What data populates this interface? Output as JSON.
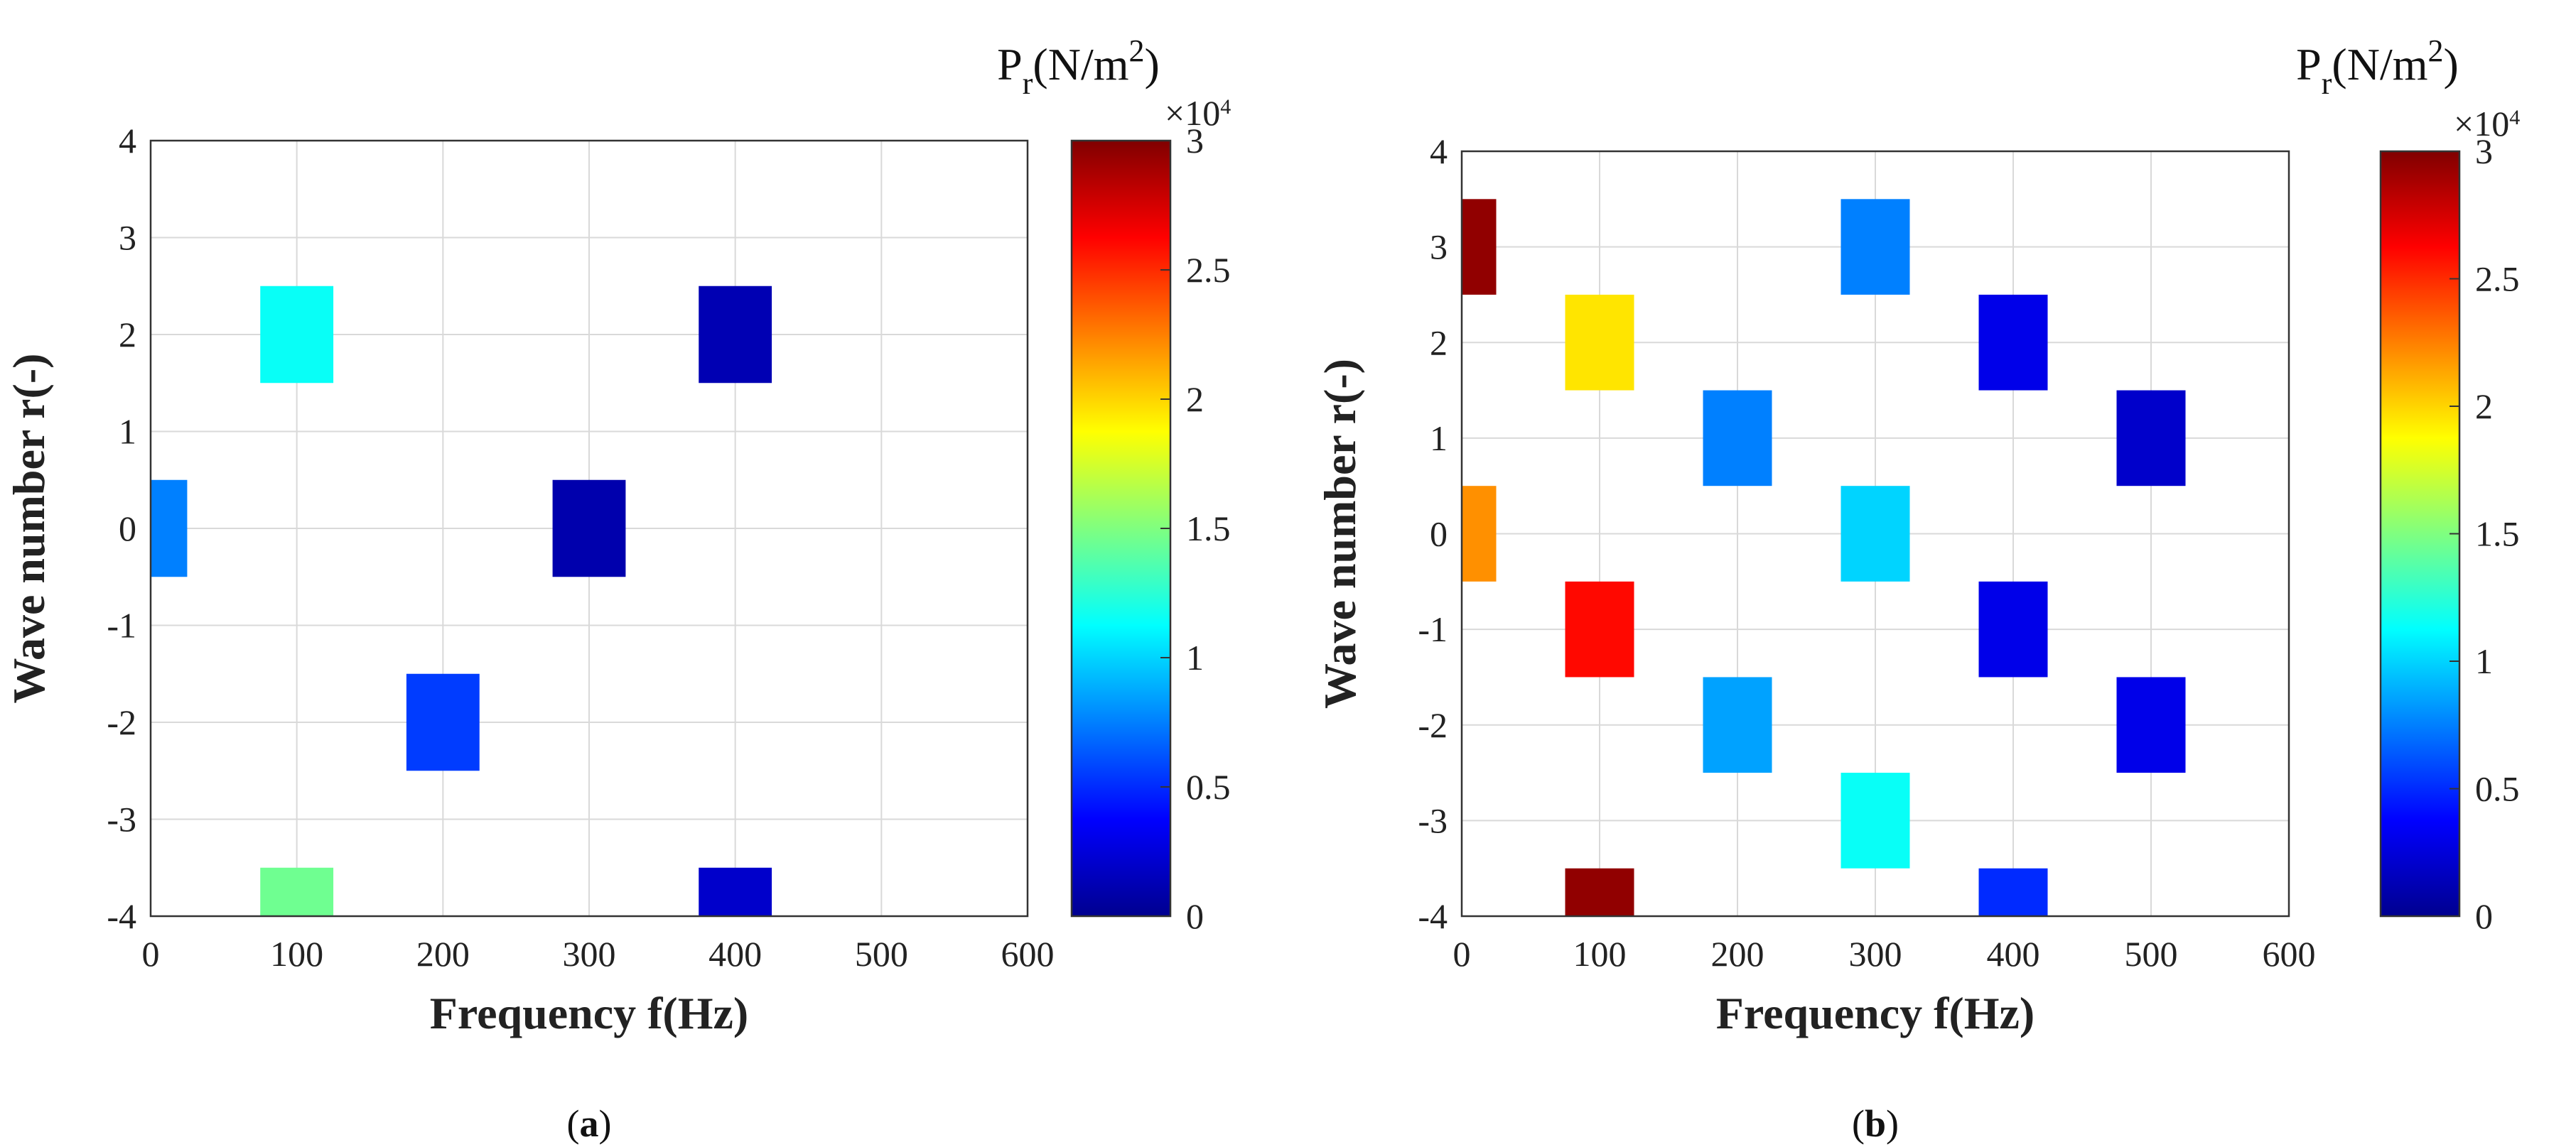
{
  "colorbar": {
    "min": 0,
    "max": 3,
    "ticks": [
      "0",
      "0.5",
      "1",
      "1.5",
      "2",
      "2.5",
      "3"
    ],
    "exponent": "×10",
    "exponent_power": "4",
    "title_P": "P",
    "title_sub": "r",
    "title_unit": "(N/m",
    "title_pow": "2",
    "title_close": ")",
    "colormap": "jet",
    "colors": [
      "#00008f",
      "#0000ff",
      "#00ffff",
      "#ffff00",
      "#ff0000",
      "#800000"
    ]
  },
  "chart_data": [
    {
      "type": "heatmap",
      "panel_label": "a",
      "xlabel": "Frequency f(Hz)",
      "ylabel": "Wave number r(-)",
      "xlim": [
        0,
        600
      ],
      "ylim": [
        -4,
        4
      ],
      "xticks": [
        "0",
        "100",
        "200",
        "300",
        "400",
        "500",
        "600"
      ],
      "yticks": [
        "-4",
        "-3",
        "-2",
        "-1",
        "0",
        "1",
        "2",
        "3",
        "4"
      ],
      "value_scale": "x10^4 N/m^2",
      "cells": [
        {
          "f": 0,
          "r": 0,
          "value": 0.75
        },
        {
          "f": 100,
          "r": 2,
          "value": 1.15
        },
        {
          "f": 100,
          "r": -4,
          "value": 1.45
        },
        {
          "f": 200,
          "r": -2,
          "value": 0.55
        },
        {
          "f": 300,
          "r": 0,
          "value": 0.1
        },
        {
          "f": 400,
          "r": 2,
          "value": 0.12
        },
        {
          "f": 400,
          "r": -4,
          "value": 0.2
        }
      ]
    },
    {
      "type": "heatmap",
      "panel_label": "b",
      "xlabel": "Frequency f(Hz)",
      "ylabel": "Wave number r(-)",
      "xlim": [
        0,
        600
      ],
      "ylim": [
        -4,
        4
      ],
      "xticks": [
        "0",
        "100",
        "200",
        "300",
        "400",
        "500",
        "600"
      ],
      "yticks": [
        "-4",
        "-3",
        "-2",
        "-1",
        "0",
        "1",
        "2",
        "3",
        "4"
      ],
      "value_scale": "x10^4 N/m^2",
      "cells": [
        {
          "f": 0,
          "r": 3,
          "value": 2.95
        },
        {
          "f": 0,
          "r": 0,
          "value": 2.2
        },
        {
          "f": 100,
          "r": 2,
          "value": 1.95
        },
        {
          "f": 100,
          "r": -1,
          "value": 2.6
        },
        {
          "f": 100,
          "r": -4,
          "value": 2.95
        },
        {
          "f": 200,
          "r": 1,
          "value": 0.75
        },
        {
          "f": 200,
          "r": -2,
          "value": 0.85
        },
        {
          "f": 300,
          "r": 3,
          "value": 0.75
        },
        {
          "f": 300,
          "r": 0,
          "value": 1.0
        },
        {
          "f": 300,
          "r": -3,
          "value": 1.15
        },
        {
          "f": 400,
          "r": 2,
          "value": 0.3
        },
        {
          "f": 400,
          "r": -1,
          "value": 0.3
        },
        {
          "f": 400,
          "r": -4,
          "value": 0.5
        },
        {
          "f": 500,
          "r": 1,
          "value": 0.2
        },
        {
          "f": 500,
          "r": -2,
          "value": 0.3
        }
      ]
    }
  ]
}
